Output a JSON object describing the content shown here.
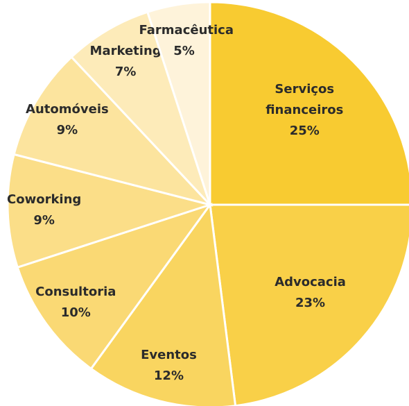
{
  "chart_data": {
    "type": "pie",
    "categories": [
      "Serviços financeiros",
      "Advocacia",
      "Eventos",
      "Consultoria",
      "Coworking",
      "Automóveis",
      "Marketing",
      "Farmacêutica"
    ],
    "values": [
      25,
      23,
      12,
      10,
      9,
      9,
      7,
      5
    ],
    "value_labels": [
      "25%",
      "23%",
      "12%",
      "10%",
      "9%",
      "9%",
      "7%",
      "5%"
    ],
    "colors": [
      "#f8cb31",
      "#f9d048",
      "#f9d560",
      "#fad974",
      "#fbde88",
      "#fce49e",
      "#fdebb9",
      "#fef3da"
    ]
  }
}
